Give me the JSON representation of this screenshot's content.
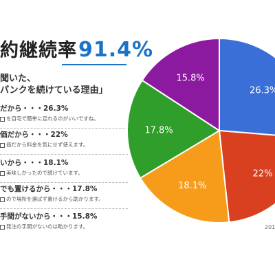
{
  "headline": {
    "prefix": "約継続率",
    "value": "91.4%"
  },
  "subtitle": "聞いた、\nパンクを続けている理由」",
  "reasons": [
    {
      "main": "だから・・・26.3%",
      "desc": "を自宅で簡単に足れるのがいいですね。"
    },
    {
      "main": "価だから・・・22%",
      "desc": "価だから料金を気にせず使えます。"
    },
    {
      "main": "いから・・・18.1%",
      "desc": "美味しかったので続けています。"
    },
    {
      "main": "でも置けるから・・・17.8%",
      "desc": "ので場所を選ばず置けるから助かります。"
    },
    {
      "main": "手間がないから・・・15.8%",
      "desc": "発注の手間がないのは助かります。"
    }
  ],
  "year_label": "201",
  "chart_data": {
    "type": "pie",
    "title": "",
    "slices": [
      {
        "label": "26.3%",
        "value": 26.3,
        "color": "#3b6fd8"
      },
      {
        "label": "22%",
        "value": 22,
        "color": "#d8401f"
      },
      {
        "label": "18.1%",
        "value": 18.1,
        "color": "#f69c1a"
      },
      {
        "label": "17.8%",
        "value": 17.8,
        "color": "#2f9e2b"
      },
      {
        "label": "15.8%",
        "value": 15.8,
        "color": "#8c1aa0"
      }
    ]
  }
}
